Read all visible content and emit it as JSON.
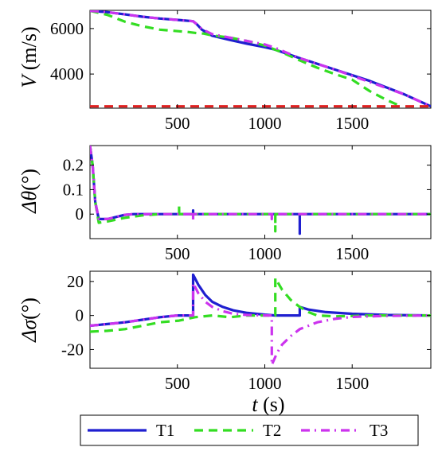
{
  "chart_data": [
    {
      "type": "line",
      "ylabel": "V (m/s)",
      "xlim": [
        0,
        1950
      ],
      "ylim": [
        2500,
        6800
      ],
      "xticks": [
        500,
        1000,
        1500
      ],
      "yticks": [
        4000,
        6000
      ],
      "series": [
        {
          "name": "T1",
          "color": "#1f1fd0",
          "dash": "solid",
          "x": [
            0,
            100,
            200,
            300,
            400,
            500,
            590,
            610,
            640,
            700,
            800,
            900,
            1000,
            1060,
            1200,
            1400,
            1600,
            1800,
            1950
          ],
          "y": [
            6780,
            6720,
            6620,
            6520,
            6440,
            6380,
            6320,
            6200,
            5950,
            5680,
            5500,
            5330,
            5180,
            5070,
            4700,
            4200,
            3700,
            3100,
            2580
          ]
        },
        {
          "name": "T2",
          "color": "#33dd22",
          "dash": "dash",
          "x": [
            0,
            100,
            200,
            300,
            400,
            510,
            560,
            610,
            650,
            700,
            800,
            900,
            1000,
            1100,
            1200,
            1300,
            1400,
            1500,
            1600,
            1700,
            1780
          ],
          "y": [
            6780,
            6600,
            6300,
            6100,
            5950,
            5880,
            5850,
            5800,
            5780,
            5700,
            5600,
            5450,
            5250,
            4950,
            4600,
            4280,
            4000,
            3750,
            3250,
            2850,
            2580
          ]
        },
        {
          "name": "T3",
          "color": "#cc33ee",
          "dash": "dashdot",
          "x": [
            0,
            100,
            200,
            300,
            400,
            500,
            590,
            610,
            640,
            700,
            800,
            900,
            1000,
            1060,
            1200,
            1400,
            1600,
            1800,
            1950
          ],
          "y": [
            6780,
            6720,
            6620,
            6520,
            6440,
            6380,
            6320,
            6200,
            5980,
            5750,
            5600,
            5450,
            5300,
            5150,
            4700,
            4200,
            3650,
            3100,
            2580
          ]
        },
        {
          "name": "",
          "color": "#e02020",
          "dash": "dash",
          "x": [
            0,
            1950
          ],
          "y": [
            2580,
            2580
          ]
        }
      ]
    },
    {
      "type": "line",
      "ylabel": "Δθ(°)",
      "xlim": [
        0,
        1950
      ],
      "ylim": [
        -0.1,
        0.28
      ],
      "xticks": [
        500,
        1000,
        1500
      ],
      "yticks": [
        0,
        0.1,
        0.2
      ],
      "ytick_labels": [
        "0",
        "0.1",
        "0.2"
      ],
      "series": [
        {
          "name": "T1",
          "color": "#1f1fd0",
          "dash": "solid",
          "x": [
            0,
            15,
            30,
            50,
            100,
            200,
            250,
            590,
            590,
            590,
            1200,
            1200,
            1200,
            1950
          ],
          "y": [
            0.28,
            0.2,
            0.05,
            -0.02,
            -0.02,
            -0.003,
            0,
            0,
            0.015,
            0,
            0,
            -0.08,
            0,
            0
          ]
        },
        {
          "name": "T2",
          "color": "#33dd22",
          "dash": "dash",
          "x": [
            0,
            15,
            30,
            50,
            100,
            200,
            300,
            400,
            510,
            510,
            510,
            520,
            1060,
            1060,
            1060,
            1950
          ],
          "y": [
            0.28,
            0.2,
            0.05,
            -0.035,
            -0.03,
            -0.015,
            -0.005,
            0,
            0,
            0.035,
            0,
            0,
            0,
            -0.07,
            0,
            0
          ]
        },
        {
          "name": "T3",
          "color": "#cc33ee",
          "dash": "dashdot",
          "x": [
            0,
            15,
            30,
            50,
            100,
            200,
            250,
            590,
            590,
            590,
            1040,
            1040,
            1040,
            1950
          ],
          "y": [
            0.28,
            0.2,
            0.05,
            -0.02,
            -0.02,
            -0.003,
            0,
            0,
            -0.03,
            0,
            0,
            -0.02,
            0,
            0
          ]
        }
      ]
    },
    {
      "type": "line",
      "ylabel": "Δσ(°)",
      "xlabel": "t (s)",
      "xlim": [
        0,
        1950
      ],
      "ylim": [
        -31,
        26
      ],
      "xticks": [
        500,
        1000,
        1500
      ],
      "yticks": [
        -20,
        0,
        20
      ],
      "series": [
        {
          "name": "T1",
          "color": "#1f1fd0",
          "dash": "solid",
          "x": [
            0,
            100,
            200,
            300,
            400,
            500,
            590,
            590,
            620,
            660,
            700,
            760,
            820,
            900,
            1000,
            1060,
            1200,
            1200,
            1250,
            1350,
            1500,
            1700,
            1950
          ],
          "y": [
            -6,
            -5,
            -4,
            -2.5,
            -1,
            0,
            0,
            24,
            18,
            12,
            8,
            5,
            3,
            1.5,
            0.5,
            0,
            0,
            5,
            3.5,
            2,
            1,
            0.3,
            0
          ]
        },
        {
          "name": "T2",
          "color": "#33dd22",
          "dash": "dash",
          "x": [
            0,
            100,
            200,
            300,
            400,
            510,
            510,
            600,
            700,
            800,
            900,
            1060,
            1060,
            1100,
            1150,
            1200,
            1250,
            1300,
            1400,
            1500,
            1600,
            1950
          ],
          "y": [
            -9.5,
            -9,
            -8,
            -6,
            -4,
            -3,
            -3,
            -1,
            0,
            -1,
            0,
            0,
            22,
            15,
            9,
            5,
            2,
            0,
            -0.5,
            -0.3,
            0,
            0
          ]
        },
        {
          "name": "T3",
          "color": "#cc33ee",
          "dash": "dashdot",
          "x": [
            0,
            100,
            200,
            300,
            400,
            500,
            590,
            590,
            620,
            660,
            700,
            760,
            820,
            900,
            1000,
            1040,
            1040,
            1070,
            1100,
            1150,
            1200,
            1300,
            1400,
            1500,
            1700,
            1950
          ],
          "y": [
            -6,
            -5,
            -4,
            -2.5,
            -1,
            0,
            0,
            19,
            13,
            8,
            5,
            2.5,
            1,
            0.3,
            0,
            0,
            -29,
            -22,
            -17,
            -12,
            -8,
            -4,
            -2,
            -0.8,
            -0.2,
            0
          ]
        }
      ]
    }
  ],
  "legend": {
    "items": [
      {
        "label": "T1",
        "color": "#1f1fd0",
        "dash": "solid"
      },
      {
        "label": "T2",
        "color": "#33dd22",
        "dash": "dash"
      },
      {
        "label": "T3",
        "color": "#cc33ee",
        "dash": "dashdot"
      }
    ]
  }
}
